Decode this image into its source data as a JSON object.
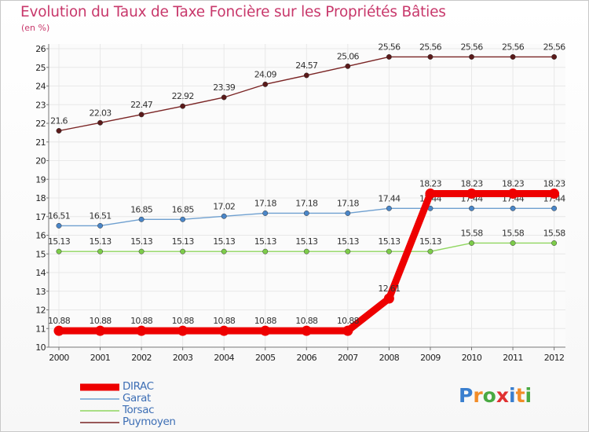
{
  "chart_data": {
    "type": "line",
    "title": "Evolution du Taux de Taxe Foncière sur les Propriétés Bâties",
    "ylabel": "(en %)",
    "xlabel": "",
    "ylim": [
      10,
      26
    ],
    "yticks": [
      "10",
      "11",
      "12",
      "13",
      "14",
      "15",
      "16",
      "17",
      "18",
      "19",
      "20",
      "21",
      "22",
      "23",
      "24",
      "25",
      "26"
    ],
    "categories": [
      "2000",
      "2001",
      "2002",
      "2003",
      "2004",
      "2005",
      "2006",
      "2007",
      "2008",
      "2009",
      "2010",
      "2011",
      "2012"
    ],
    "series": [
      {
        "name": "Puymoyen",
        "color": "#7a2424",
        "marker_color": "#5a1a1a",
        "values": [
          21.6,
          22.03,
          22.47,
          22.92,
          23.39,
          24.09,
          24.57,
          25.06,
          25.56,
          25.56,
          25.56,
          25.56,
          25.56
        ],
        "labels": [
          "21.6",
          "22.03",
          "22.47",
          "22.92",
          "23.39",
          "24.09",
          "24.57",
          "25.06",
          "25.56",
          "25.56",
          "25.56",
          "25.56",
          "25.56"
        ]
      },
      {
        "name": "Garat",
        "color": "#6fa0d0",
        "marker_color": "#4a86c8",
        "values": [
          16.51,
          16.51,
          16.85,
          16.85,
          17.02,
          17.18,
          17.18,
          17.18,
          17.44,
          17.44,
          17.44,
          17.44,
          17.44
        ],
        "labels": [
          "16.51",
          "16.51",
          "16.85",
          "16.85",
          "17.02",
          "17.18",
          "17.18",
          "17.18",
          "17.44",
          "17.44",
          "17.44",
          "17.44",
          "17.44"
        ]
      },
      {
        "name": "Torsac",
        "color": "#8fd65f",
        "marker_color": "#7dcc4a",
        "values": [
          15.13,
          15.13,
          15.13,
          15.13,
          15.13,
          15.13,
          15.13,
          15.13,
          15.13,
          15.13,
          15.58,
          15.58,
          15.58
        ],
        "labels": [
          "15.13",
          "15.13",
          "15.13",
          "15.13",
          "15.13",
          "15.13",
          "15.13",
          "15.13",
          "15.13",
          "15.13",
          "15.58",
          "15.58",
          "15.58"
        ]
      },
      {
        "name": "DIRAC",
        "color": "#ee0000",
        "marker_color": "#ee0000",
        "values": [
          10.88,
          10.88,
          10.88,
          10.88,
          10.88,
          10.88,
          10.88,
          10.88,
          12.61,
          18.23,
          18.23,
          18.23,
          18.23
        ],
        "labels": [
          "10.88",
          "10.88",
          "10.88",
          "10.88",
          "10.88",
          "10.88",
          "10.88",
          "10.88",
          "12.61",
          "18.23",
          "18.23",
          "18.23",
          "18.23"
        ]
      }
    ],
    "legend": [
      "DIRAC",
      "Garat",
      "Torsac",
      "Puymoyen"
    ],
    "legend_position": "bottom-left"
  },
  "logo": {
    "text": [
      "P",
      "r",
      "o",
      "x",
      "i",
      "t",
      "i"
    ],
    "colors": [
      "#3a7fcf",
      "#f28c28",
      "#49a942",
      "#e03131",
      "#3a7fcf",
      "#f28c28",
      "#49a942"
    ]
  }
}
